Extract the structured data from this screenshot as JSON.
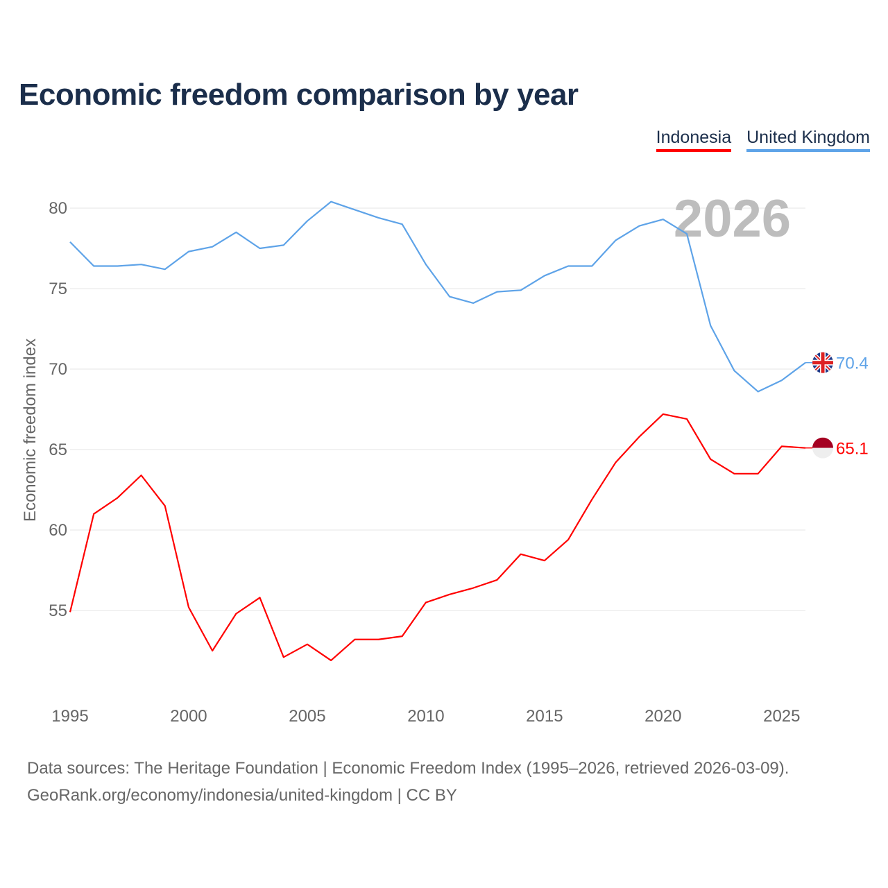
{
  "title": "Economic freedom comparison by year",
  "source_line1": "Data sources: The Heritage Foundation | Economic Freedom Index (1995–2026, retrieved 2026-03-09).",
  "source_line2": "GeoRank.org/economy/indonesia/united-kingdom | CC BY",
  "chart_data": {
    "type": "line",
    "title": "Economic freedom comparison by year",
    "xlabel": "",
    "ylabel": "Economic freedom index",
    "year_watermark": "2026",
    "xlim": [
      1995,
      2026
    ],
    "ylim": [
      49.4,
      82
    ],
    "xticks": [
      1995,
      2000,
      2005,
      2010,
      2015,
      2020,
      2025
    ],
    "yticks": [
      55,
      60,
      65,
      70,
      75,
      80
    ],
    "grid": true,
    "legend_position": "top-right",
    "x": [
      1995,
      1996,
      1997,
      1998,
      1999,
      2000,
      2001,
      2002,
      2003,
      2004,
      2005,
      2006,
      2007,
      2008,
      2009,
      2010,
      2011,
      2012,
      2013,
      2014,
      2015,
      2016,
      2017,
      2018,
      2019,
      2020,
      2021,
      2022,
      2023,
      2024,
      2025,
      2026
    ],
    "series": [
      {
        "name": "Indonesia",
        "color": "#ff0000",
        "end_label": "65.1",
        "flag": "indonesia-flag",
        "values": [
          54.9,
          61.0,
          62.0,
          63.4,
          61.5,
          55.2,
          52.5,
          54.8,
          55.8,
          52.1,
          52.9,
          51.9,
          53.2,
          53.2,
          53.4,
          55.5,
          56.0,
          56.4,
          56.9,
          58.5,
          58.1,
          59.4,
          61.9,
          64.2,
          65.8,
          67.2,
          66.9,
          64.4,
          63.5,
          63.5,
          65.2,
          65.1
        ]
      },
      {
        "name": "United Kingdom",
        "color": "#5ea3e8",
        "end_label": "70.4",
        "flag": "uk-flag",
        "values": [
          77.9,
          76.4,
          76.4,
          76.5,
          76.2,
          77.3,
          77.6,
          78.5,
          77.5,
          77.7,
          79.2,
          80.4,
          79.9,
          79.4,
          79.0,
          76.5,
          74.5,
          74.1,
          74.8,
          74.9,
          75.8,
          76.4,
          76.4,
          78.0,
          78.9,
          79.3,
          78.4,
          72.7,
          69.9,
          68.6,
          69.3,
          70.4
        ]
      }
    ]
  }
}
